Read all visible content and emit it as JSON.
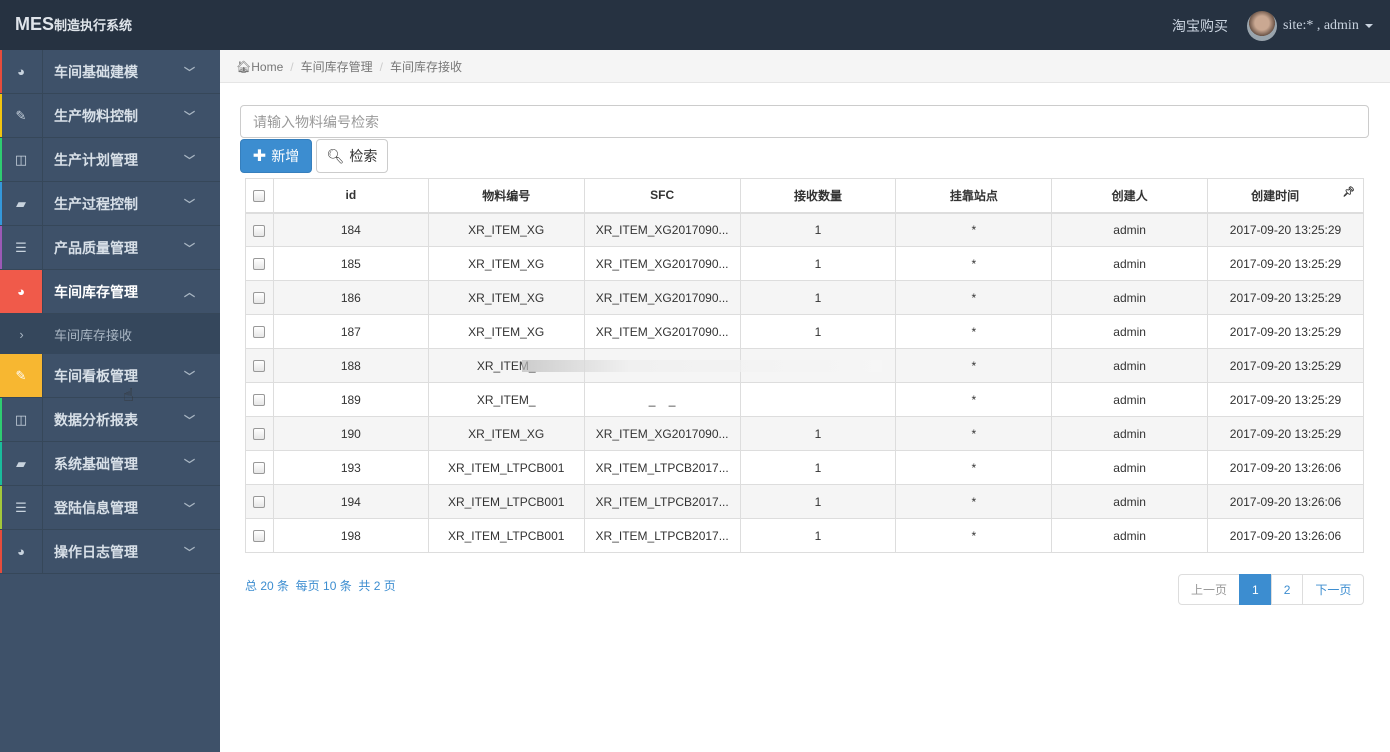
{
  "header": {
    "brand": "MES",
    "brand_sub": "制造执行系统",
    "shop_link": "淘宝购买",
    "user": "site:* , admin"
  },
  "sidebar": {
    "items": [
      {
        "label": "车间基础建模",
        "icon": "dashboard-icon",
        "edge": "#e74c3c"
      },
      {
        "label": "生产物料控制",
        "icon": "edit-icon",
        "edge": "#f1c40f"
      },
      {
        "label": "生产计划管理",
        "icon": "columns-icon",
        "edge": "#2ecc71"
      },
      {
        "label": "生产过程控制",
        "icon": "book-icon",
        "edge": "#3498db"
      },
      {
        "label": "产品质量管理",
        "icon": "list-icon",
        "edge": "#9b59b6"
      },
      {
        "label": "车间库存管理",
        "icon": "dashboard-icon",
        "edge": "#f05a4a",
        "state": "expanded"
      },
      {
        "label": "车间看板管理",
        "icon": "edit-icon",
        "edge": "#f7b731",
        "state": "hover"
      },
      {
        "label": "数据分析报表",
        "icon": "columns-icon",
        "edge": "#2ecc71"
      },
      {
        "label": "系统基础管理",
        "icon": "book-icon",
        "edge": "#1abc9c"
      },
      {
        "label": "登陆信息管理",
        "icon": "list-icon",
        "edge": "#a3c83a"
      },
      {
        "label": "操作日志管理",
        "icon": "dashboard-icon",
        "edge": "#e74c3c"
      }
    ],
    "sub_item": "车间库存接收"
  },
  "breadcrumb": [
    "Home",
    "车间库存管理",
    "车间库存接收"
  ],
  "search": {
    "placeholder": "请输入物料编号检索",
    "value": ""
  },
  "toolbar": {
    "add": "新增",
    "search": "检索"
  },
  "table": {
    "columns": [
      "id",
      "物料编号",
      "SFC",
      "接收数量",
      "挂靠站点",
      "创建人",
      "创建时间"
    ],
    "rows": [
      [
        "184",
        "XR_ITEM_XG",
        "XR_ITEM_XG2017090...",
        "1",
        "*",
        "admin",
        "2017-09-20 13:25:29"
      ],
      [
        "185",
        "XR_ITEM_XG",
        "XR_ITEM_XG2017090...",
        "1",
        "*",
        "admin",
        "2017-09-20 13:25:29"
      ],
      [
        "186",
        "XR_ITEM_XG",
        "XR_ITEM_XG2017090...",
        "1",
        "*",
        "admin",
        "2017-09-20 13:25:29"
      ],
      [
        "187",
        "XR_ITEM_XG",
        "XR_ITEM_XG2017090...",
        "1",
        "*",
        "admin",
        "2017-09-20 13:25:29"
      ],
      [
        "188",
        "XR_ITEM_",
        "",
        "",
        "*",
        "admin",
        "2017-09-20 13:25:29"
      ],
      [
        "189",
        "XR_ITEM_",
        "_    _",
        "",
        "*",
        "admin",
        "2017-09-20 13:25:29"
      ],
      [
        "190",
        "XR_ITEM_XG",
        "XR_ITEM_XG2017090...",
        "1",
        "*",
        "admin",
        "2017-09-20 13:25:29"
      ],
      [
        "193",
        "XR_ITEM_LTPCB001",
        "XR_ITEM_LTPCB2017...",
        "1",
        "*",
        "admin",
        "2017-09-20 13:26:06"
      ],
      [
        "194",
        "XR_ITEM_LTPCB001",
        "XR_ITEM_LTPCB2017...",
        "1",
        "*",
        "admin",
        "2017-09-20 13:26:06"
      ],
      [
        "198",
        "XR_ITEM_LTPCB001",
        "XR_ITEM_LTPCB2017...",
        "1",
        "*",
        "admin",
        "2017-09-20 13:26:06"
      ]
    ]
  },
  "footer": {
    "summary": "总 20 条  每页 10 条  共 2 页",
    "pager": [
      "上一页",
      "1",
      "2",
      "下一页"
    ],
    "current_page": 1
  }
}
